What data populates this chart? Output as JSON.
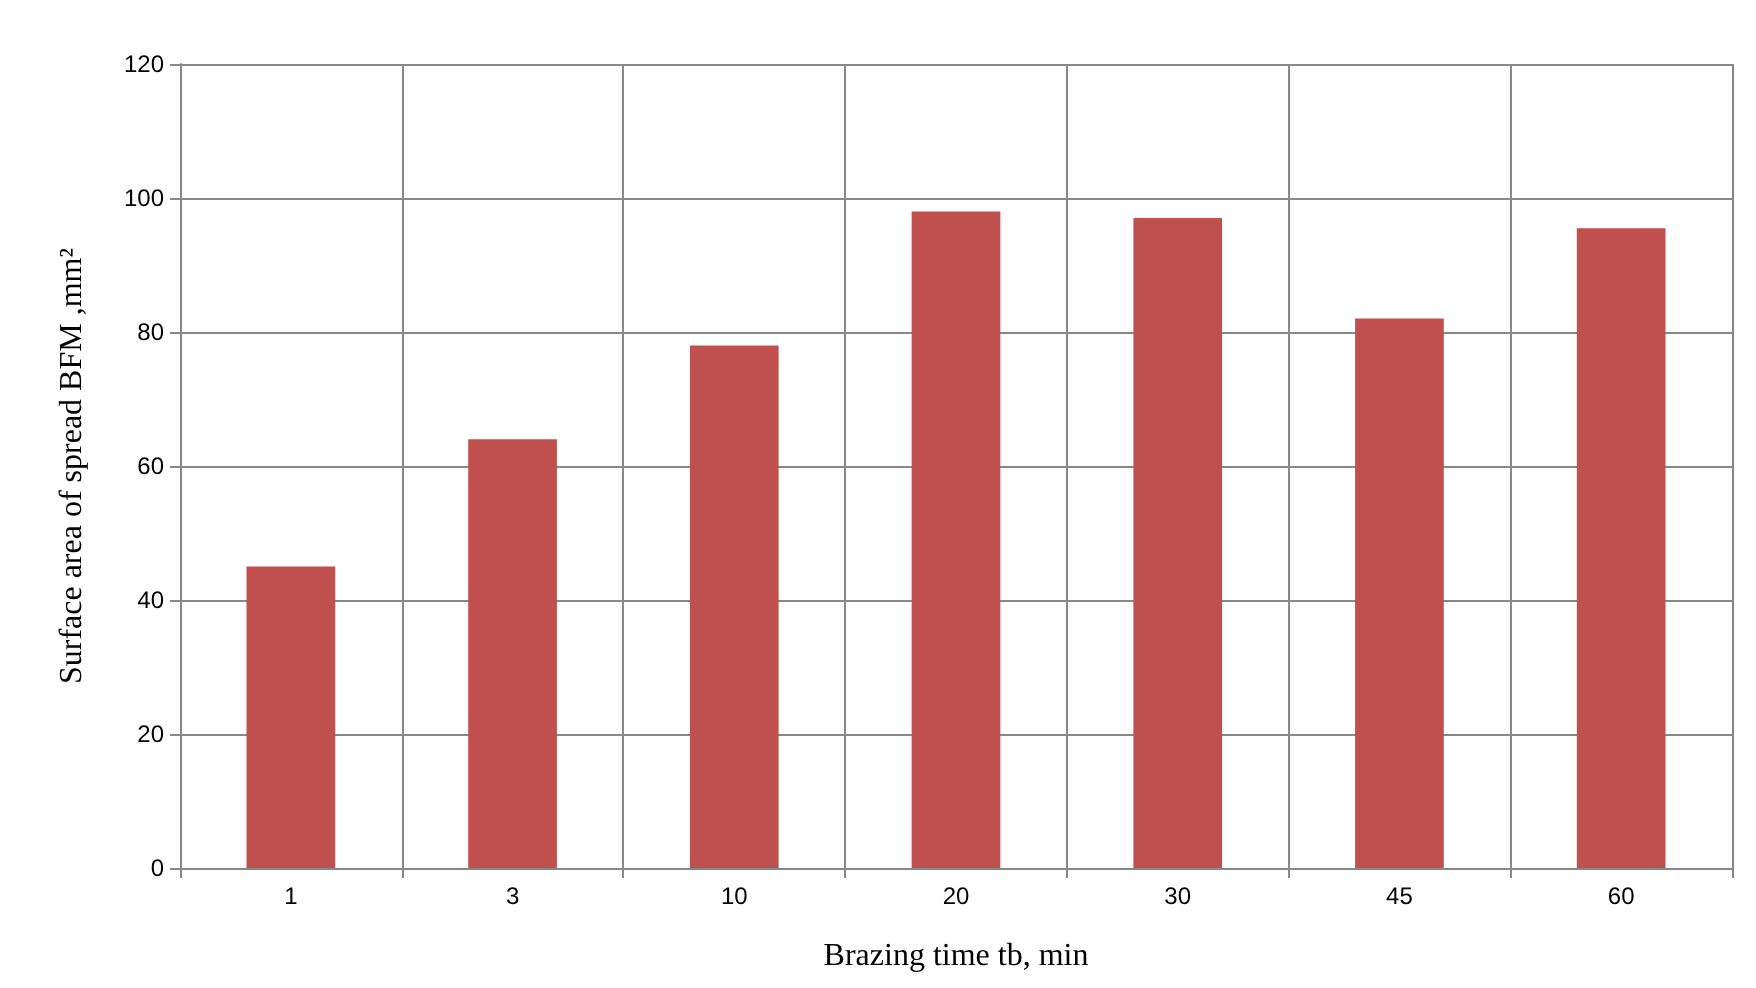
{
  "chart_data": {
    "type": "bar",
    "xlabel": "Brazing time tb, min",
    "ylabel": "Surface area of spread BFM ,mm²",
    "categories": [
      "1",
      "3",
      "10",
      "20",
      "30",
      "45",
      "60"
    ],
    "values": [
      45,
      64,
      78,
      98,
      97,
      82,
      95.5
    ],
    "color": "#c0504d",
    "ylim": [
      0,
      120
    ],
    "yticks": [
      0,
      20,
      40,
      60,
      80,
      100,
      120
    ],
    "grid": true
  }
}
